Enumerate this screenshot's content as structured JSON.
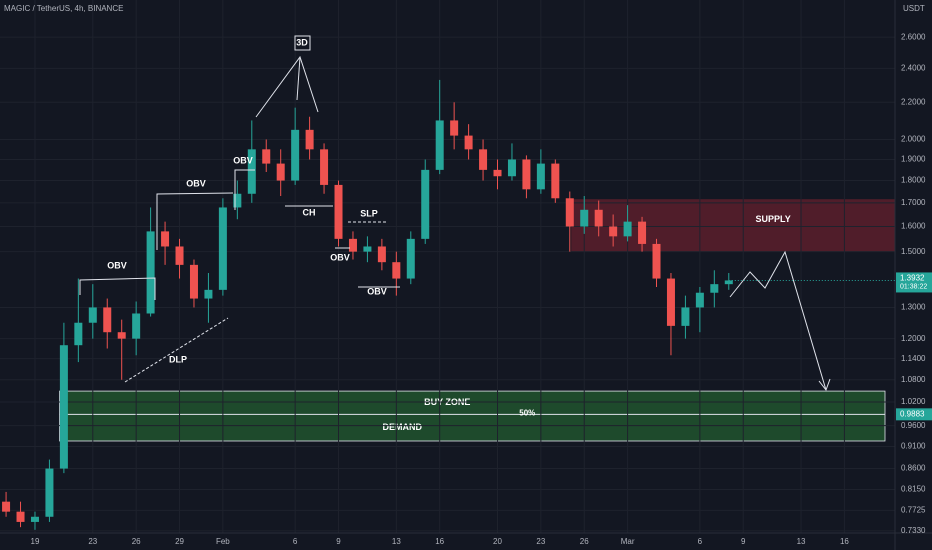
{
  "chart_data": {
    "type": "candlestick",
    "title": "MAGIC / TetherUS, 4h, BINANCE",
    "y_axis_label": "USDT",
    "log_scale": true,
    "grid": true,
    "up_color": "#26a69a",
    "down_color": "#ef5350",
    "x": [
      17,
      18,
      19,
      20,
      21,
      22,
      23,
      24,
      25,
      26,
      27,
      28,
      29,
      30,
      31,
      32,
      33,
      34,
      35,
      36,
      37,
      38,
      39,
      40,
      41,
      42,
      43,
      44,
      45,
      46,
      47,
      48,
      49,
      50,
      51,
      52,
      53,
      54,
      55,
      56,
      57,
      58,
      59,
      60,
      61,
      62,
      63,
      64,
      65,
      66,
      67
    ],
    "open": [
      0.79,
      0.77,
      0.75,
      0.76,
      0.86,
      1.18,
      1.25,
      1.3,
      1.22,
      1.2,
      1.28,
      1.58,
      1.52,
      1.45,
      1.33,
      1.36,
      1.68,
      1.74,
      1.95,
      1.88,
      1.8,
      2.05,
      1.95,
      1.78,
      1.55,
      1.5,
      1.52,
      1.46,
      1.4,
      1.55,
      1.85,
      2.1,
      2.02,
      1.95,
      1.85,
      1.82,
      1.9,
      1.76,
      1.88,
      1.72,
      1.6,
      1.67,
      1.6,
      1.56,
      1.62,
      1.53,
      1.4,
      1.24,
      1.3,
      1.35,
      1.38
    ],
    "high": [
      0.81,
      0.79,
      0.77,
      0.88,
      1.25,
      1.4,
      1.38,
      1.33,
      1.26,
      1.32,
      1.68,
      1.62,
      1.55,
      1.47,
      1.42,
      1.72,
      1.8,
      2.1,
      2.0,
      1.95,
      2.17,
      2.12,
      1.98,
      1.8,
      1.58,
      1.56,
      1.55,
      1.5,
      1.58,
      1.9,
      2.33,
      2.2,
      2.08,
      2.0,
      1.9,
      1.98,
      1.92,
      1.95,
      1.9,
      1.75,
      1.73,
      1.71,
      1.65,
      1.69,
      1.64,
      1.55,
      1.42,
      1.34,
      1.37,
      1.43,
      1.42
    ],
    "low": [
      0.76,
      0.74,
      0.735,
      0.75,
      0.85,
      1.13,
      1.2,
      1.17,
      1.08,
      1.15,
      1.27,
      1.45,
      1.4,
      1.3,
      1.25,
      1.34,
      1.63,
      1.7,
      1.84,
      1.73,
      1.78,
      1.9,
      1.74,
      1.52,
      1.47,
      1.46,
      1.43,
      1.34,
      1.38,
      1.53,
      1.83,
      1.95,
      1.9,
      1.8,
      1.76,
      1.8,
      1.72,
      1.74,
      1.7,
      1.5,
      1.57,
      1.56,
      1.52,
      1.54,
      1.5,
      1.37,
      1.15,
      1.2,
      1.22,
      1.3,
      1.36
    ],
    "close": [
      0.77,
      0.75,
      0.76,
      0.86,
      1.18,
      1.25,
      1.3,
      1.22,
      1.2,
      1.28,
      1.58,
      1.52,
      1.45,
      1.33,
      1.36,
      1.68,
      1.74,
      1.95,
      1.88,
      1.8,
      2.05,
      1.95,
      1.78,
      1.55,
      1.5,
      1.52,
      1.46,
      1.4,
      1.55,
      1.85,
      2.1,
      2.02,
      1.95,
      1.85,
      1.82,
      1.9,
      1.76,
      1.88,
      1.72,
      1.6,
      1.67,
      1.6,
      1.56,
      1.62,
      1.53,
      1.4,
      1.24,
      1.3,
      1.35,
      1.38,
      1.3932
    ],
    "xlim": [
      16.58,
      78.5
    ],
    "ylim": [
      0.729,
      2.86
    ],
    "xticks": [
      19,
      23,
      26,
      29,
      {
        "value": 32,
        "label": "Feb"
      },
      {
        "value": 37,
        "label": "6"
      },
      {
        "value": 40,
        "label": "9"
      },
      {
        "value": 44,
        "label": "13"
      },
      {
        "value": 47,
        "label": "16"
      },
      {
        "value": 51,
        "label": "20"
      },
      {
        "value": 54,
        "label": "23"
      },
      {
        "value": 57,
        "label": "26"
      },
      {
        "value": 60,
        "label": "Mar"
      },
      {
        "value": 65,
        "label": "6"
      },
      {
        "value": 68,
        "label": "9"
      },
      {
        "value": 72,
        "label": "13"
      },
      {
        "value": 75,
        "label": "16"
      }
    ],
    "yticks": [
      {
        "value": 2.6,
        "label": "2.6000"
      },
      {
        "value": 2.4,
        "label": "2.4000"
      },
      {
        "value": 2.2,
        "label": "2.2000"
      },
      {
        "value": 2.0,
        "label": "2.0000"
      },
      {
        "value": 1.9,
        "label": "1.9000"
      },
      {
        "value": 1.8,
        "label": "1.8000"
      },
      {
        "value": 1.7,
        "label": "1.7000"
      },
      {
        "value": 1.6,
        "label": "1.6000"
      },
      {
        "value": 1.5,
        "label": "1.5000"
      },
      {
        "value": 1.3,
        "label": "1.3000"
      },
      {
        "value": 1.2,
        "label": "1.2000"
      },
      {
        "value": 1.14,
        "label": "1.1400"
      },
      {
        "value": 1.08,
        "label": "1.0800"
      },
      {
        "value": 1.02,
        "label": "1.0200"
      },
      {
        "value": 0.96,
        "label": "0.9600"
      },
      {
        "value": 0.91,
        "label": "0.9100"
      },
      {
        "value": 0.86,
        "label": "0.8600"
      },
      {
        "value": 0.815,
        "label": "0.8150"
      },
      {
        "value": 0.7725,
        "label": "0.7725"
      },
      {
        "value": 0.733,
        "label": "0.7330"
      }
    ],
    "supply_zone": {
      "label": "SUPPLY",
      "top": 1.716,
      "bottom": 1.5,
      "x_start": 56.1,
      "color": "#5c1f2b"
    },
    "buy_zone": {
      "label": "BUY ZONE",
      "top": 1.049,
      "bottom": 0.923,
      "x_start": 20.7,
      "mid": 0.9883,
      "mid_label": "50%",
      "lower_label": "DEMAND",
      "color": "#1e4a2c"
    },
    "last_price": {
      "value": 1.3932,
      "countdown": "01:38:22",
      "color": "#26a69a"
    },
    "annotations": [
      "OBV",
      "OBV",
      "OBV",
      "3D",
      "CH",
      "SLP",
      "OBV",
      "OBV",
      "DLP"
    ]
  }
}
